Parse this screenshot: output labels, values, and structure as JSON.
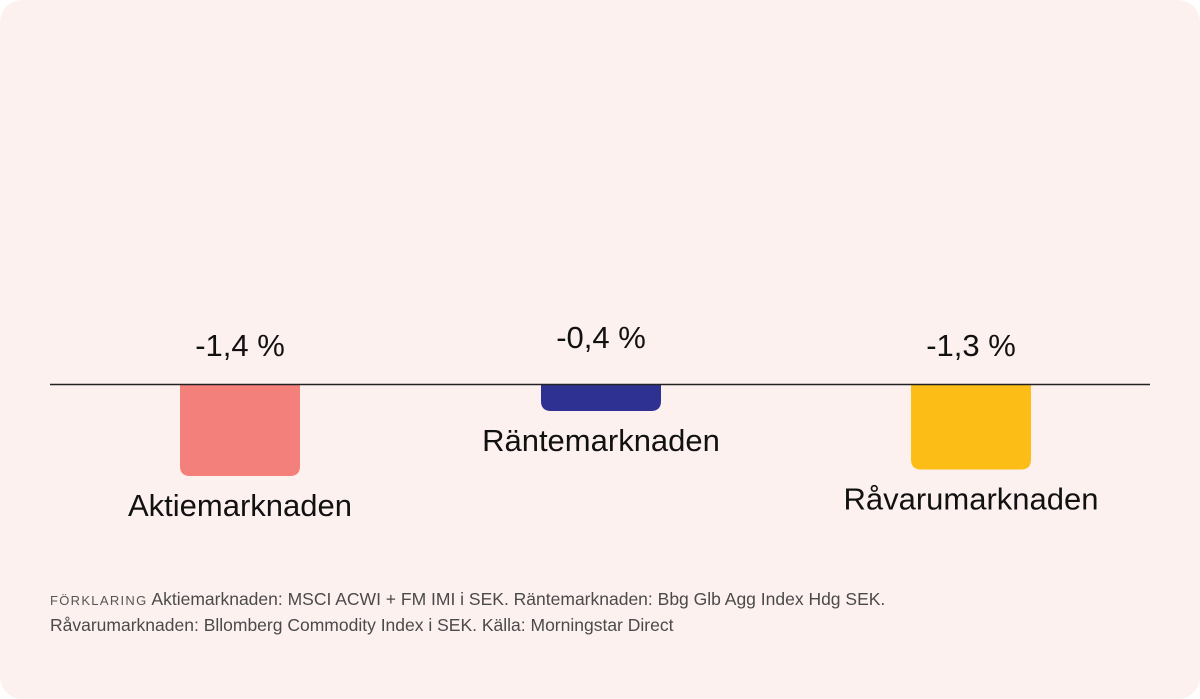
{
  "chart_data": {
    "type": "bar",
    "title": "",
    "xlabel": "",
    "ylabel": "",
    "categories": [
      "Aktiemarknaden",
      "Räntemarknaden",
      "Råvarumarknaden"
    ],
    "values": [
      -1.4,
      -0.4,
      -1.3
    ],
    "value_labels": [
      "-1,4 %",
      "-0,4 %",
      "-1,3 %"
    ],
    "colors": [
      "#f4807c",
      "#2e3192",
      "#fbbd16"
    ],
    "ylim": [
      -1.6,
      0
    ],
    "grid": false,
    "legend": "none"
  },
  "footnote": {
    "tag": "FÖRKLARING",
    "text": "Aktiemarknaden: MSCI ACWI + FM IMI i SEK. Räntemarknaden: Bbg Glb Agg Index Hdg SEK.",
    "text2": "Råvarumarknaden: Bllomberg Commodity Index i SEK. Källa: Morningstar Direct"
  },
  "colors": {
    "background": "#fdf1ef",
    "baseline": "#222222",
    "text": "#111111"
  }
}
